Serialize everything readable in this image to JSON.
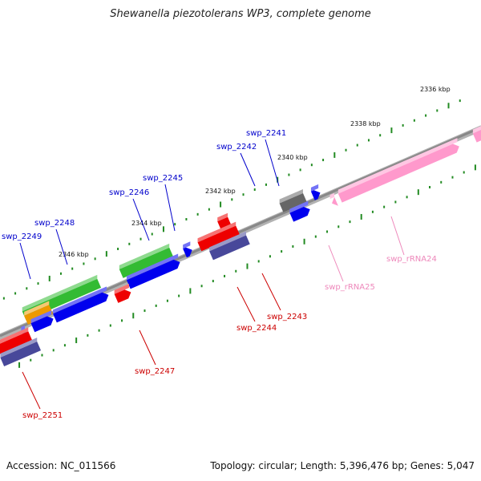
{
  "title": "Shewanella piezotolerans WP3, complete genome",
  "accession_text": "Accession: NC_011566",
  "stats_text": "Topology: circular; Length: 5,396,476 bp; Genes: 5,047",
  "colors": {
    "backbone": "#888888",
    "tick": "#228B22",
    "blue": "#0000EE",
    "red": "#EE0000",
    "green": "#33BB33",
    "orange": "#EE9900",
    "gray": "#666666",
    "slate": "#48489A",
    "pink": "#FF99CC",
    "label_blue": "#0000CC",
    "label_red": "#CC0000",
    "label_pink": "#EE88BB"
  },
  "kbp_markers": [
    "2336 kbp",
    "2338 kbp",
    "2340 kbp",
    "2342 kbp",
    "2344 kbp",
    "2346 kbp"
  ],
  "gene_labels": [
    {
      "text": "swp_2241",
      "color": "label_blue"
    },
    {
      "text": "swp_2242",
      "color": "label_blue"
    },
    {
      "text": "swp_2245",
      "color": "label_blue"
    },
    {
      "text": "swp_2246",
      "color": "label_blue"
    },
    {
      "text": "swp_2248",
      "color": "label_blue"
    },
    {
      "text": "swp_2249",
      "color": "label_blue"
    },
    {
      "text": "swp_rRNA24",
      "color": "label_pink"
    },
    {
      "text": "swp_rRNA25",
      "color": "label_pink"
    },
    {
      "text": "swp_2243",
      "color": "label_red"
    },
    {
      "text": "swp_2244",
      "color": "label_red"
    },
    {
      "text": "swp_2247",
      "color": "label_red"
    },
    {
      "text": "swp_2251",
      "color": "label_red"
    }
  ]
}
